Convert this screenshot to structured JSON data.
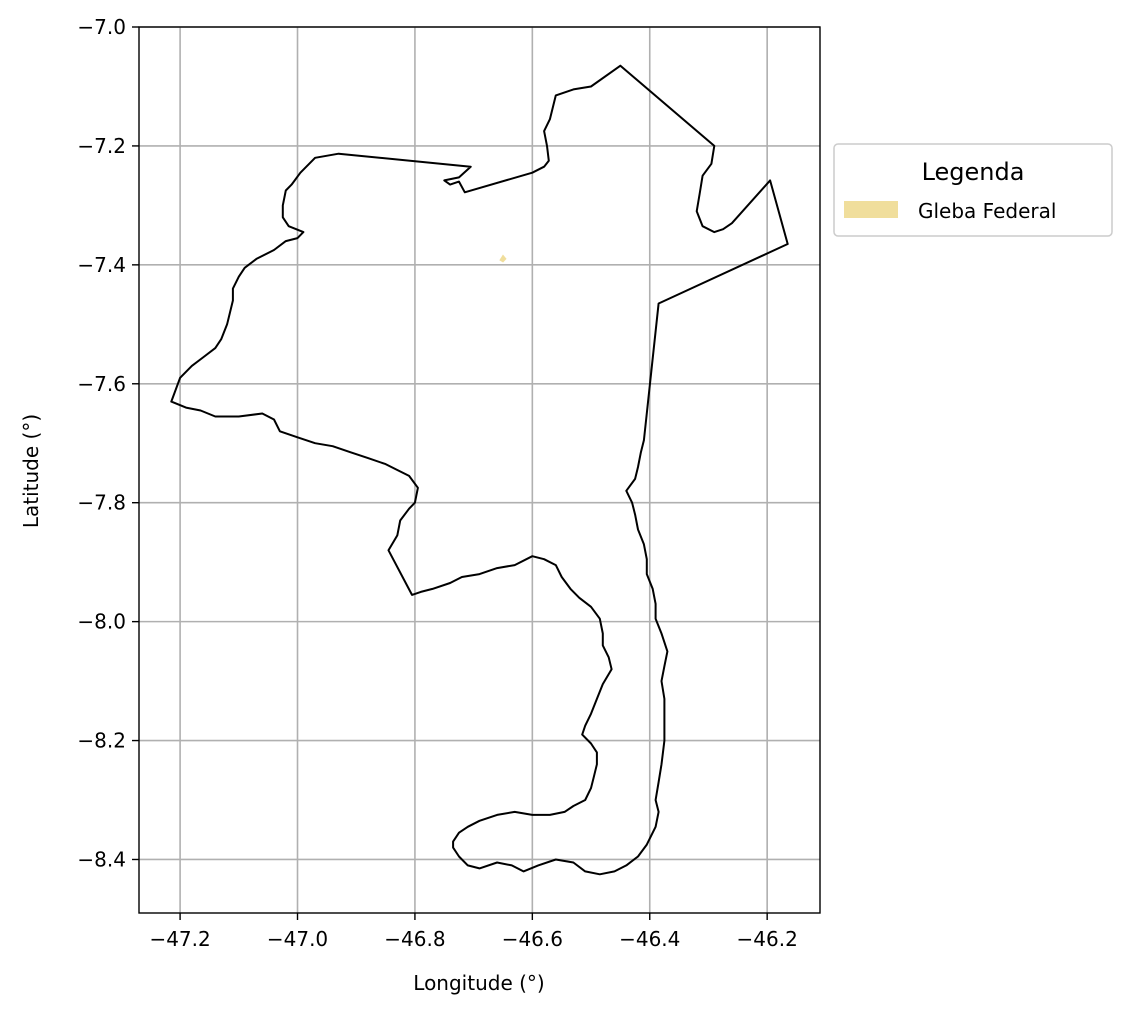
{
  "chart_data": {
    "type": "map",
    "xlabel": "Longitude (°)",
    "ylabel": "Latitude (°)",
    "xlim": [
      -47.27,
      -46.11
    ],
    "ylim": [
      -8.49,
      -7.0
    ],
    "xticks": [
      -47.2,
      -47.0,
      -46.8,
      -46.6,
      -46.4,
      -46.2
    ],
    "yticks": [
      -7.0,
      -7.2,
      -7.4,
      -7.6,
      -7.8,
      -8.0,
      -8.2,
      -8.4
    ],
    "xtick_labels": [
      "−47.2",
      "−47.0",
      "−46.8",
      "−46.6",
      "−46.4",
      "−46.2"
    ],
    "ytick_labels": [
      "−7.0",
      "−7.2",
      "−7.4",
      "−7.6",
      "−7.8",
      "−8.0",
      "−8.2",
      "−8.4"
    ],
    "grid": true,
    "legend": {
      "title": "Legenda",
      "placement": "outside-right-top",
      "entries": [
        {
          "label": "Gleba Federal",
          "color": "#f0de9c"
        }
      ]
    },
    "boundary": {
      "stroke": "#000000",
      "points": [
        [
          -46.45,
          -7.065
        ],
        [
          -46.5,
          -7.1
        ],
        [
          -46.53,
          -7.105
        ],
        [
          -46.56,
          -7.115
        ],
        [
          -46.57,
          -7.155
        ],
        [
          -46.58,
          -7.175
        ],
        [
          -46.575,
          -7.2
        ],
        [
          -46.572,
          -7.225
        ],
        [
          -46.58,
          -7.235
        ],
        [
          -46.6,
          -7.245
        ],
        [
          -46.715,
          -7.278
        ],
        [
          -46.725,
          -7.26
        ],
        [
          -46.74,
          -7.265
        ],
        [
          -46.75,
          -7.258
        ],
        [
          -46.725,
          -7.253
        ],
        [
          -46.705,
          -7.235
        ],
        [
          -46.93,
          -7.213
        ],
        [
          -46.97,
          -7.22
        ],
        [
          -46.995,
          -7.245
        ],
        [
          -47.01,
          -7.265
        ],
        [
          -47.02,
          -7.275
        ],
        [
          -47.025,
          -7.3
        ],
        [
          -47.025,
          -7.32
        ],
        [
          -47.015,
          -7.335
        ],
        [
          -46.99,
          -7.345
        ],
        [
          -47.0,
          -7.355
        ],
        [
          -47.02,
          -7.36
        ],
        [
          -47.04,
          -7.375
        ],
        [
          -47.07,
          -7.39
        ],
        [
          -47.09,
          -7.405
        ],
        [
          -47.1,
          -7.42
        ],
        [
          -47.11,
          -7.44
        ],
        [
          -47.11,
          -7.46
        ],
        [
          -47.12,
          -7.5
        ],
        [
          -47.13,
          -7.525
        ],
        [
          -47.14,
          -7.54
        ],
        [
          -47.16,
          -7.555
        ],
        [
          -47.18,
          -7.57
        ],
        [
          -47.2,
          -7.59
        ],
        [
          -47.215,
          -7.63
        ],
        [
          -47.19,
          -7.64
        ],
        [
          -47.165,
          -7.645
        ],
        [
          -47.14,
          -7.655
        ],
        [
          -47.1,
          -7.655
        ],
        [
          -47.06,
          -7.65
        ],
        [
          -47.04,
          -7.66
        ],
        [
          -47.03,
          -7.68
        ],
        [
          -47.0,
          -7.69
        ],
        [
          -46.97,
          -7.7
        ],
        [
          -46.94,
          -7.705
        ],
        [
          -46.91,
          -7.715
        ],
        [
          -46.88,
          -7.725
        ],
        [
          -46.85,
          -7.735
        ],
        [
          -46.83,
          -7.745
        ],
        [
          -46.81,
          -7.755
        ],
        [
          -46.795,
          -7.775
        ],
        [
          -46.8,
          -7.8
        ],
        [
          -46.81,
          -7.81
        ],
        [
          -46.825,
          -7.83
        ],
        [
          -46.83,
          -7.855
        ],
        [
          -46.845,
          -7.88
        ],
        [
          -46.805,
          -7.955
        ],
        [
          -46.79,
          -7.95
        ],
        [
          -46.77,
          -7.945
        ],
        [
          -46.74,
          -7.935
        ],
        [
          -46.72,
          -7.925
        ],
        [
          -46.69,
          -7.92
        ],
        [
          -46.66,
          -7.91
        ],
        [
          -46.63,
          -7.905
        ],
        [
          -46.6,
          -7.89
        ],
        [
          -46.58,
          -7.895
        ],
        [
          -46.56,
          -7.905
        ],
        [
          -46.55,
          -7.925
        ],
        [
          -46.535,
          -7.945
        ],
        [
          -46.52,
          -7.96
        ],
        [
          -46.5,
          -7.975
        ],
        [
          -46.485,
          -7.995
        ],
        [
          -46.48,
          -8.02
        ],
        [
          -46.48,
          -8.04
        ],
        [
          -46.47,
          -8.06
        ],
        [
          -46.465,
          -8.08
        ],
        [
          -46.48,
          -8.105
        ],
        [
          -46.49,
          -8.13
        ],
        [
          -46.5,
          -8.155
        ],
        [
          -46.51,
          -8.175
        ],
        [
          -46.515,
          -8.19
        ],
        [
          -46.5,
          -8.205
        ],
        [
          -46.49,
          -8.22
        ],
        [
          -46.49,
          -8.24
        ],
        [
          -46.495,
          -8.26
        ],
        [
          -46.5,
          -8.28
        ],
        [
          -46.51,
          -8.3
        ],
        [
          -46.53,
          -8.31
        ],
        [
          -46.545,
          -8.32
        ],
        [
          -46.57,
          -8.325
        ],
        [
          -46.6,
          -8.325
        ],
        [
          -46.63,
          -8.32
        ],
        [
          -46.66,
          -8.325
        ],
        [
          -46.69,
          -8.335
        ],
        [
          -46.71,
          -8.345
        ],
        [
          -46.725,
          -8.355
        ],
        [
          -46.735,
          -8.37
        ],
        [
          -46.735,
          -8.38
        ],
        [
          -46.725,
          -8.395
        ],
        [
          -46.71,
          -8.41
        ],
        [
          -46.69,
          -8.415
        ],
        [
          -46.66,
          -8.405
        ],
        [
          -46.635,
          -8.41
        ],
        [
          -46.615,
          -8.42
        ],
        [
          -46.59,
          -8.41
        ],
        [
          -46.56,
          -8.4
        ],
        [
          -46.53,
          -8.405
        ],
        [
          -46.51,
          -8.42
        ],
        [
          -46.485,
          -8.425
        ],
        [
          -46.46,
          -8.42
        ],
        [
          -46.44,
          -8.41
        ],
        [
          -46.42,
          -8.395
        ],
        [
          -46.405,
          -8.375
        ],
        [
          -46.39,
          -8.345
        ],
        [
          -46.385,
          -8.32
        ],
        [
          -46.39,
          -8.3
        ],
        [
          -46.385,
          -8.27
        ],
        [
          -46.38,
          -8.24
        ],
        [
          -46.375,
          -8.2
        ],
        [
          -46.375,
          -8.16
        ],
        [
          -46.375,
          -8.13
        ],
        [
          -46.38,
          -8.1
        ],
        [
          -46.375,
          -8.075
        ],
        [
          -46.37,
          -8.05
        ],
        [
          -46.38,
          -8.02
        ],
        [
          -46.39,
          -7.995
        ],
        [
          -46.39,
          -7.97
        ],
        [
          -46.395,
          -7.945
        ],
        [
          -46.405,
          -7.92
        ],
        [
          -46.405,
          -7.895
        ],
        [
          -46.41,
          -7.87
        ],
        [
          -46.42,
          -7.845
        ],
        [
          -46.425,
          -7.82
        ],
        [
          -46.43,
          -7.8
        ],
        [
          -46.44,
          -7.78
        ],
        [
          -46.425,
          -7.76
        ],
        [
          -46.42,
          -7.74
        ],
        [
          -46.415,
          -7.715
        ],
        [
          -46.41,
          -7.695
        ],
        [
          -46.385,
          -7.465
        ],
        [
          -46.165,
          -7.365
        ],
        [
          -46.195,
          -7.258
        ],
        [
          -46.26,
          -7.33
        ],
        [
          -46.275,
          -7.34
        ],
        [
          -46.29,
          -7.345
        ],
        [
          -46.31,
          -7.335
        ],
        [
          -46.32,
          -7.31
        ],
        [
          -46.315,
          -7.28
        ],
        [
          -46.31,
          -7.25
        ],
        [
          -46.295,
          -7.23
        ],
        [
          -46.29,
          -7.2
        ]
      ]
    },
    "gleba_federal": {
      "points": [
        [
          -46.655,
          -7.392
        ],
        [
          -46.65,
          -7.384
        ],
        [
          -46.645,
          -7.39
        ],
        [
          -46.65,
          -7.395
        ]
      ]
    }
  }
}
